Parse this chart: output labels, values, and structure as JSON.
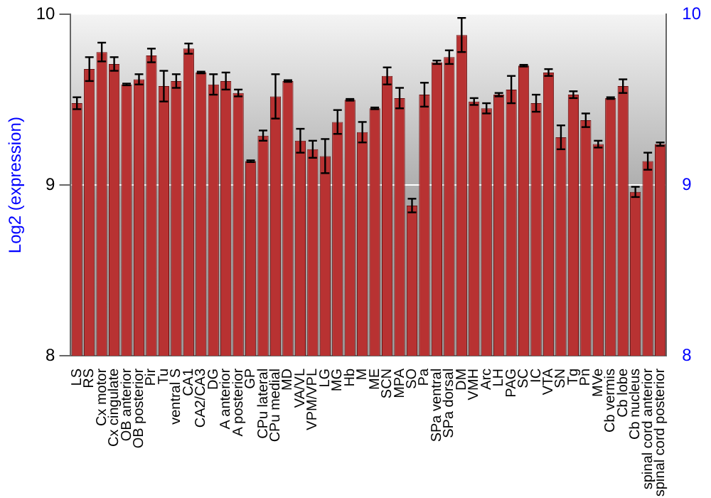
{
  "chart_data": {
    "type": "bar",
    "ylabel": "Log2 (expression)",
    "categories": [
      "LS",
      "RS",
      "Cx motor",
      "Cx cingulate",
      "OB anterior",
      "OB posterior",
      "Pir",
      "Tu",
      "ventral S",
      "CA1",
      "CA2/CA3",
      "DG",
      "A anterior",
      "A posterior",
      "GP",
      "CPu lateral",
      "CPu medial",
      "MD",
      "VA/VL",
      "VPM/VPL",
      "LG",
      "MG",
      "Hb",
      "M",
      "ME",
      "SCN",
      "MPA",
      "SO",
      "Pa",
      "SPa ventral",
      "SPa dorsal",
      "DM",
      "VMH",
      "Arc",
      "LH",
      "PAG",
      "SC",
      "IC",
      "VTA",
      "SN",
      "Tg",
      "Pn",
      "MVe",
      "Cb vermis",
      "Cb lobe",
      "Cb nucleus",
      "spinal cord anterior",
      "spinal cord posterior"
    ],
    "values": [
      9.48,
      9.68,
      9.78,
      9.71,
      9.59,
      9.62,
      9.76,
      9.58,
      9.61,
      9.8,
      9.66,
      9.59,
      9.61,
      9.54,
      9.14,
      9.29,
      9.52,
      9.61,
      9.26,
      9.21,
      9.17,
      9.37,
      9.5,
      9.31,
      9.45,
      9.64,
      9.51,
      8.88,
      9.53,
      9.72,
      9.75,
      9.88,
      9.49,
      9.45,
      9.53,
      9.56,
      9.7,
      9.48,
      9.66,
      9.28,
      9.53,
      9.38,
      9.24,
      9.51,
      9.58,
      8.96,
      9.14,
      9.24
    ],
    "errors": [
      0.035,
      0.07,
      0.055,
      0.04,
      0.005,
      0.03,
      0.04,
      0.09,
      0.04,
      0.03,
      0.005,
      0.06,
      0.05,
      0.02,
      0.005,
      0.03,
      0.13,
      0.005,
      0.07,
      0.05,
      0.1,
      0.07,
      0.005,
      0.06,
      0.005,
      0.05,
      0.06,
      0.04,
      0.07,
      0.01,
      0.04,
      0.1,
      0.02,
      0.03,
      0.01,
      0.08,
      0.005,
      0.05,
      0.02,
      0.07,
      0.02,
      0.04,
      0.02,
      0.005,
      0.04,
      0.03,
      0.05,
      0.01
    ],
    "color": "#b83232",
    "ylim": [
      8,
      10
    ],
    "yticks": [
      8,
      9,
      10
    ],
    "y2lim": [
      8,
      10
    ],
    "y2ticks": [
      8,
      9,
      10
    ],
    "grid": "y",
    "legend": false
  }
}
